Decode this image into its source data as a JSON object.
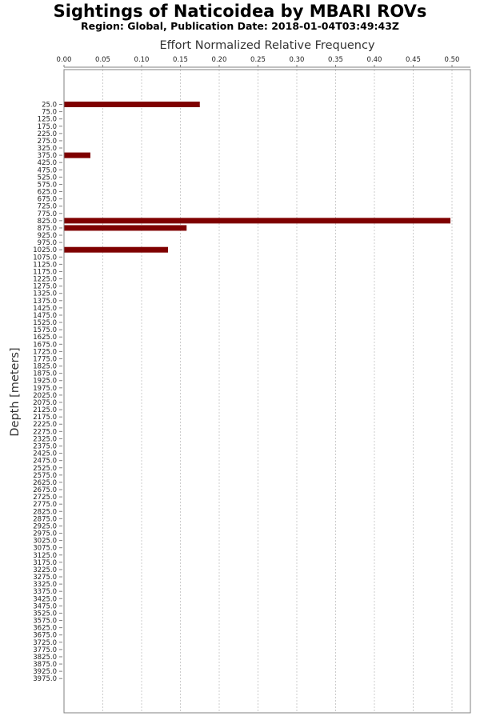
{
  "chart_data": {
    "type": "bar",
    "orientation": "horizontal",
    "title": "Sightings of Naticoidea by MBARI ROVs",
    "subtitle": "Region: Global, Publication Date: 2018-01-04T03:49:43Z",
    "xlabel": "Effort Normalized Relative Frequency",
    "ylabel": "Depth [meters]",
    "xlim": [
      0,
      0.5
    ],
    "x_ticks": [
      "0.00",
      "0.05",
      "0.10",
      "0.15",
      "0.20",
      "0.25",
      "0.30",
      "0.35",
      "0.40",
      "0.45",
      "0.50"
    ],
    "x_tick_values": [
      0,
      0.05,
      0.1,
      0.15,
      0.2,
      0.25,
      0.3,
      0.35,
      0.4,
      0.45,
      0.5
    ],
    "x_axis_position": "top",
    "grid": "vertical dashed",
    "categories": [
      "25.0",
      "75.0",
      "125.0",
      "175.0",
      "225.0",
      "275.0",
      "325.0",
      "375.0",
      "425.0",
      "475.0",
      "525.0",
      "575.0",
      "625.0",
      "675.0",
      "725.0",
      "775.0",
      "825.0",
      "875.0",
      "925.0",
      "975.0",
      "1025.0",
      "1075.0",
      "1125.0",
      "1175.0",
      "1225.0",
      "1275.0",
      "1325.0",
      "1375.0",
      "1425.0",
      "1475.0",
      "1525.0",
      "1575.0",
      "1625.0",
      "1675.0",
      "1725.0",
      "1775.0",
      "1825.0",
      "1875.0",
      "1925.0",
      "1975.0",
      "2025.0",
      "2075.0",
      "2125.0",
      "2175.0",
      "2225.0",
      "2275.0",
      "2325.0",
      "2375.0",
      "2425.0",
      "2475.0",
      "2525.0",
      "2575.0",
      "2625.0",
      "2675.0",
      "2725.0",
      "2775.0",
      "2825.0",
      "2875.0",
      "2925.0",
      "2975.0",
      "3025.0",
      "3075.0",
      "3125.0",
      "3175.0",
      "3225.0",
      "3275.0",
      "3325.0",
      "3375.0",
      "3425.0",
      "3475.0",
      "3525.0",
      "3575.0",
      "3625.0",
      "3675.0",
      "3725.0",
      "3775.0",
      "3825.0",
      "3875.0",
      "3925.0",
      "3975.0"
    ],
    "values": [
      0.175,
      0,
      0,
      0,
      0,
      0,
      0,
      0.034,
      0,
      0,
      0,
      0,
      0,
      0,
      0,
      0,
      0.498,
      0.158,
      0,
      0,
      0.134,
      0,
      0,
      0,
      0,
      0,
      0,
      0,
      0,
      0,
      0,
      0,
      0,
      0,
      0,
      0,
      0,
      0,
      0,
      0,
      0,
      0,
      0,
      0,
      0,
      0,
      0,
      0,
      0,
      0,
      0,
      0,
      0,
      0,
      0,
      0,
      0,
      0,
      0,
      0,
      0,
      0,
      0,
      0,
      0,
      0,
      0,
      0,
      0,
      0,
      0,
      0,
      0,
      0,
      0,
      0,
      0,
      0,
      0,
      0
    ],
    "colors": {
      "bar": "#7f0000",
      "grid": "#c0c0c0",
      "axis": "#808080"
    }
  }
}
